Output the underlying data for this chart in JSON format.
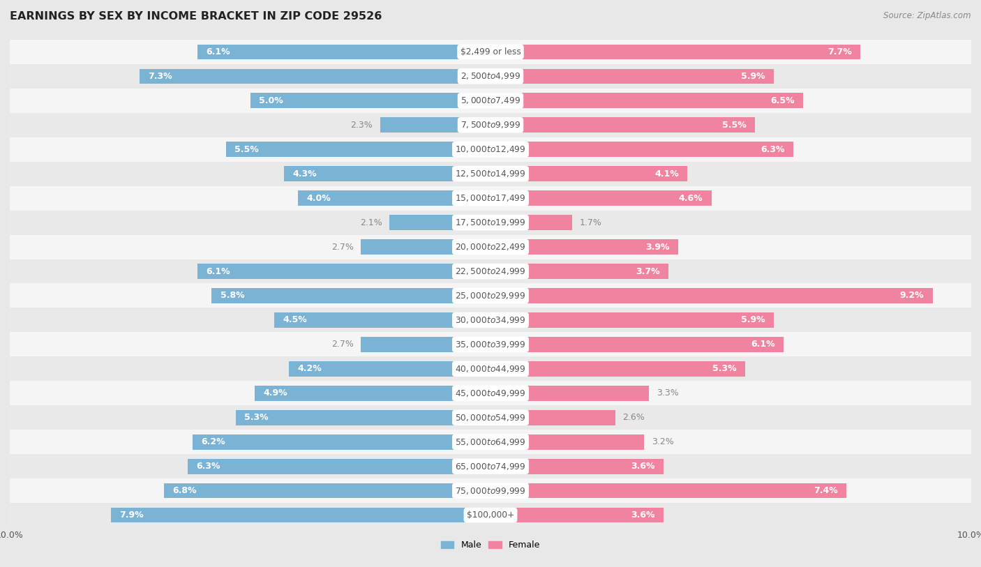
{
  "title": "EARNINGS BY SEX BY INCOME BRACKET IN ZIP CODE 29526",
  "source": "Source: ZipAtlas.com",
  "categories": [
    "$2,499 or less",
    "$2,500 to $4,999",
    "$5,000 to $7,499",
    "$7,500 to $9,999",
    "$10,000 to $12,499",
    "$12,500 to $14,999",
    "$15,000 to $17,499",
    "$17,500 to $19,999",
    "$20,000 to $22,499",
    "$22,500 to $24,999",
    "$25,000 to $29,999",
    "$30,000 to $34,999",
    "$35,000 to $39,999",
    "$40,000 to $44,999",
    "$45,000 to $49,999",
    "$50,000 to $54,999",
    "$55,000 to $64,999",
    "$65,000 to $74,999",
    "$75,000 to $99,999",
    "$100,000+"
  ],
  "male": [
    6.1,
    7.3,
    5.0,
    2.3,
    5.5,
    4.3,
    4.0,
    2.1,
    2.7,
    6.1,
    5.8,
    4.5,
    2.7,
    4.2,
    4.9,
    5.3,
    6.2,
    6.3,
    6.8,
    7.9
  ],
  "female": [
    7.7,
    5.9,
    6.5,
    5.5,
    6.3,
    4.1,
    4.6,
    1.7,
    3.9,
    3.7,
    9.2,
    5.9,
    6.1,
    5.3,
    3.3,
    2.6,
    3.2,
    3.6,
    7.4,
    3.6
  ],
  "male_color": "#7ab3d4",
  "female_color": "#f084a0",
  "male_label_color_inside": "#ffffff",
  "male_label_color_outside": "#888888",
  "female_label_color_inside": "#ffffff",
  "female_label_color_outside": "#888888",
  "bg_color": "#e8e8e8",
  "row_color_light": "#f5f5f5",
  "row_color_dark": "#e9e9e9",
  "cat_label_color": "#555555",
  "xlim": 10.0,
  "bar_height": 0.62,
  "title_fontsize": 11.5,
  "label_fontsize": 9.0,
  "cat_fontsize": 8.8,
  "tick_fontsize": 9,
  "source_fontsize": 8.5,
  "inside_threshold": 3.5
}
